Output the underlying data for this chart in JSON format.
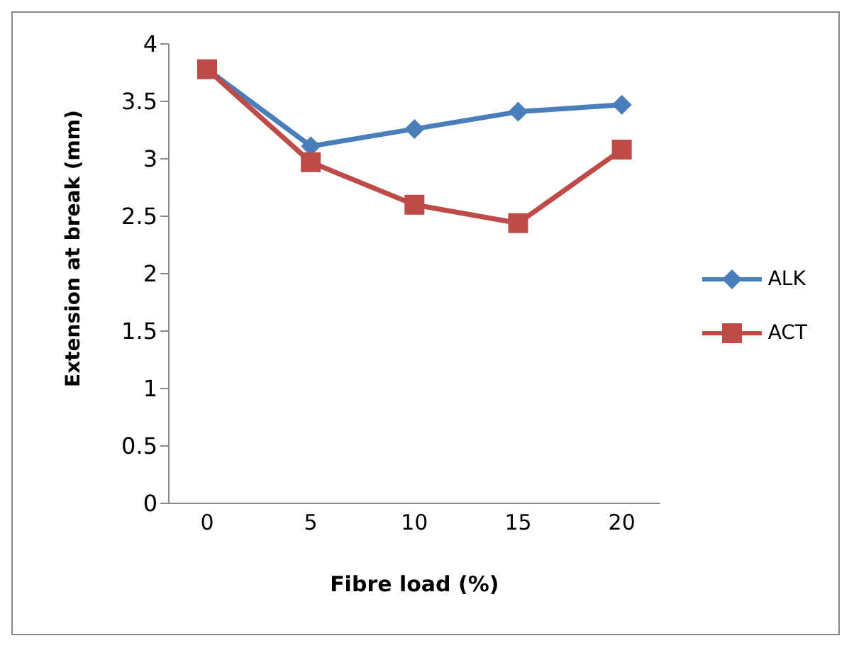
{
  "chart_data": {
    "type": "line",
    "xlabel": "Fibre load (%)",
    "ylabel": "Extension at break (mm)",
    "categories": [
      "0",
      "5",
      "10",
      "15",
      "20"
    ],
    "series": [
      {
        "name": "ALK",
        "color": "#4a7ebb",
        "marker": "diamond",
        "values": [
          3.78,
          3.11,
          3.26,
          3.41,
          3.47
        ]
      },
      {
        "name": "ACT",
        "color": "#be4b48",
        "marker": "square",
        "values": [
          3.78,
          2.97,
          2.6,
          2.44,
          3.08
        ]
      }
    ],
    "ylim": [
      0,
      4
    ],
    "yticks": [
      0,
      {
        "value": 0.5,
        "label": "0.5"
      },
      1,
      {
        "value": 1.5,
        "label": "1.5"
      },
      2,
      {
        "value": 2.5,
        "label": "2.5"
      },
      3,
      {
        "value": 3.5,
        "label": "3.5"
      },
      4
    ],
    "grid": false,
    "legend": "right",
    "line_style": "solid"
  }
}
